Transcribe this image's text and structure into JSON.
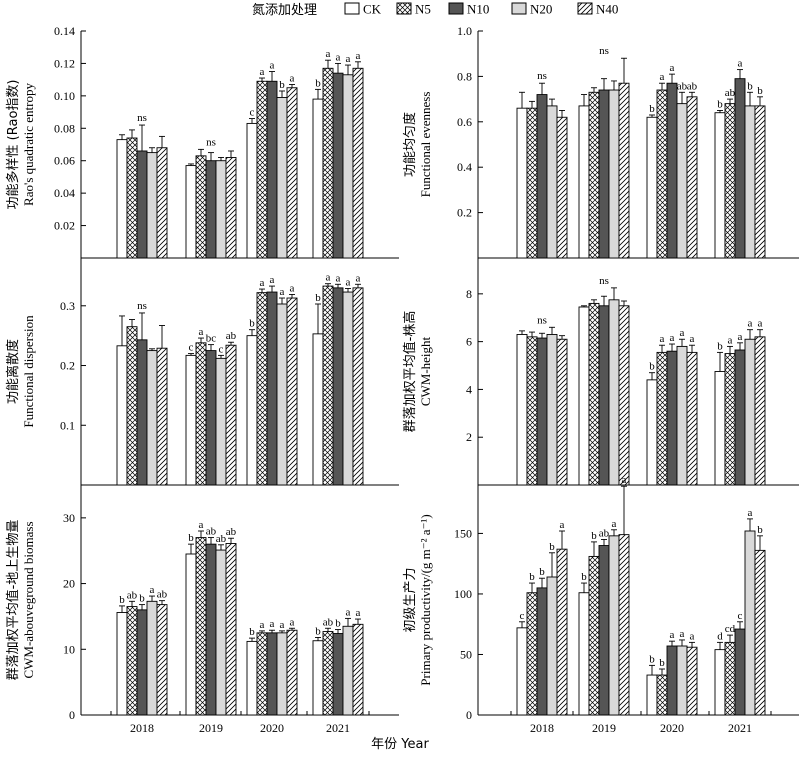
{
  "legend": {
    "title": "氮添加处理",
    "items": [
      {
        "name": "CK",
        "pattern": "white"
      },
      {
        "name": "N5",
        "pattern": "cross"
      },
      {
        "name": "N10",
        "pattern": "dark"
      },
      {
        "name": "N20",
        "pattern": "light"
      },
      {
        "name": "N40",
        "pattern": "hatch"
      }
    ]
  },
  "xlabel": "年份 Year",
  "colors": {
    "dark": "#555555",
    "light": "#d9d9d9",
    "stroke": "#000000",
    "white": "#ffffff"
  },
  "chart_data": [
    {
      "id": "rao",
      "type": "bar",
      "ylabel": [
        "功能多样性 (Rao指数)",
        "Rao's quadratic entropy"
      ],
      "categories": [
        "2018",
        "2019",
        "2020",
        "2021"
      ],
      "ylim": [
        0,
        0.14
      ],
      "yticks": [
        "0.02",
        "0.04",
        "0.06",
        "0.08",
        "0.10",
        "0.12",
        "0.14"
      ],
      "yticks_values": [
        0.02,
        0.04,
        0.06,
        0.08,
        0.1,
        0.12,
        0.14
      ],
      "series": [
        {
          "name": "CK",
          "values": [
            0.073,
            0.057,
            0.083,
            0.098
          ],
          "errors": [
            0.003,
            0.001,
            0.003,
            0.006
          ]
        },
        {
          "name": "N5",
          "values": [
            0.074,
            0.063,
            0.109,
            0.117
          ],
          "errors": [
            0.005,
            0.004,
            0.002,
            0.005
          ]
        },
        {
          "name": "N10",
          "values": [
            0.066,
            0.06,
            0.109,
            0.114
          ],
          "errors": [
            0.016,
            0.005,
            0.006,
            0.006
          ]
        },
        {
          "name": "N20",
          "values": [
            0.065,
            0.06,
            0.099,
            0.113
          ],
          "errors": [
            0.003,
            0.002,
            0.004,
            0.006
          ]
        },
        {
          "name": "N40",
          "values": [
            0.068,
            0.062,
            0.105,
            0.117
          ],
          "errors": [
            0.007,
            0.004,
            0.002,
            0.004
          ]
        }
      ],
      "annotations": [
        [
          {
            "text": "ns",
            "group": true
          }
        ],
        [
          {
            "text": "ns",
            "group": true
          }
        ],
        [
          {
            "text": "c"
          },
          {
            "text": "a"
          },
          {
            "text": "a"
          },
          {
            "text": "b"
          },
          {
            "text": "a"
          }
        ],
        [
          {
            "text": "b"
          },
          {
            "text": "a"
          },
          {
            "text": "a"
          },
          {
            "text": "a"
          },
          {
            "text": "a"
          }
        ]
      ]
    },
    {
      "id": "fe",
      "type": "bar",
      "ylabel": [
        "功能均匀度",
        "Functional evenness"
      ],
      "categories": [
        "2018",
        "2019",
        "2020",
        "2021"
      ],
      "ylim": [
        0,
        1.0
      ],
      "yticks": [
        "0.2",
        "0.4",
        "0.6",
        "0.8",
        "1.0"
      ],
      "yticks_values": [
        0.2,
        0.4,
        0.6,
        0.8,
        1.0
      ],
      "series": [
        {
          "name": "CK",
          "values": [
            0.66,
            0.67,
            0.62,
            0.64
          ],
          "errors": [
            0.07,
            0.05,
            0.01,
            0.01
          ]
        },
        {
          "name": "N5",
          "values": [
            0.66,
            0.73,
            0.74,
            0.68
          ],
          "errors": [
            0.03,
            0.02,
            0.03,
            0.02
          ]
        },
        {
          "name": "N10",
          "values": [
            0.72,
            0.74,
            0.77,
            0.79
          ],
          "errors": [
            0.05,
            0.05,
            0.04,
            0.04
          ]
        },
        {
          "name": "N20",
          "values": [
            0.67,
            0.74,
            0.68,
            0.67
          ],
          "errors": [
            0.03,
            0.04,
            0.05,
            0.06
          ]
        },
        {
          "name": "N40",
          "values": [
            0.62,
            0.77,
            0.71,
            0.67
          ],
          "errors": [
            0.03,
            0.11,
            0.02,
            0.04
          ]
        }
      ],
      "annotations": [
        [
          {
            "text": "ns",
            "group": true
          }
        ],
        [
          {
            "text": "ns",
            "group": true
          }
        ],
        [
          {
            "text": "b"
          },
          {
            "text": "a"
          },
          {
            "text": "a"
          },
          {
            "text": "ab"
          },
          {
            "text": "ab"
          }
        ],
        [
          {
            "text": "b"
          },
          {
            "text": "ab"
          },
          {
            "text": "a"
          },
          {
            "text": "b"
          },
          {
            "text": "b"
          }
        ]
      ]
    },
    {
      "id": "fd",
      "type": "bar",
      "ylabel": [
        "功能离散度",
        "Functional dispersion"
      ],
      "categories": [
        "2018",
        "2019",
        "2020",
        "2021"
      ],
      "ylim": [
        0,
        0.38
      ],
      "yticks": [
        "0.1",
        "0.2",
        "0.3"
      ],
      "yticks_values": [
        0.1,
        0.2,
        0.3
      ],
      "series": [
        {
          "name": "CK",
          "values": [
            0.233,
            0.217,
            0.25,
            0.253
          ],
          "errors": [
            0.05,
            0.003,
            0.01,
            0.05
          ]
        },
        {
          "name": "N5",
          "values": [
            0.265,
            0.238,
            0.322,
            0.333
          ],
          "errors": [
            0.012,
            0.008,
            0.006,
            0.004
          ]
        },
        {
          "name": "N10",
          "values": [
            0.243,
            0.225,
            0.323,
            0.33
          ],
          "errors": [
            0.045,
            0.01,
            0.01,
            0.006
          ]
        },
        {
          "name": "N20",
          "values": [
            0.225,
            0.212,
            0.303,
            0.323
          ],
          "errors": [
            0.003,
            0.005,
            0.01,
            0.006
          ]
        },
        {
          "name": "N40",
          "values": [
            0.229,
            0.234,
            0.313,
            0.33
          ],
          "errors": [
            0.038,
            0.005,
            0.006,
            0.006
          ]
        }
      ],
      "annotations": [
        [
          {
            "text": "ns",
            "group": true
          }
        ],
        [
          {
            "text": "c"
          },
          {
            "text": "a"
          },
          {
            "text": "bc"
          },
          {
            "text": "c"
          },
          {
            "text": "ab"
          }
        ],
        [
          {
            "text": "b"
          },
          {
            "text": "a"
          },
          {
            "text": "a"
          },
          {
            "text": "a"
          },
          {
            "text": "a"
          }
        ],
        [
          {
            "text": "b"
          },
          {
            "text": "a"
          },
          {
            "text": "a"
          },
          {
            "text": "a"
          },
          {
            "text": "a"
          }
        ]
      ]
    },
    {
      "id": "height",
      "type": "bar",
      "ylabel": [
        "群落加权平均值-株高",
        "CWM-height"
      ],
      "categories": [
        "2018",
        "2019",
        "2020",
        "2021"
      ],
      "ylim": [
        0,
        9.5
      ],
      "yticks": [
        "2",
        "4",
        "6",
        "8"
      ],
      "yticks_values": [
        2,
        4,
        6,
        8
      ],
      "series": [
        {
          "name": "CK",
          "values": [
            6.3,
            7.45,
            4.4,
            4.75
          ],
          "errors": [
            0.15,
            0.05,
            0.3,
            0.8
          ]
        },
        {
          "name": "N5",
          "values": [
            6.2,
            7.6,
            5.55,
            5.5
          ],
          "errors": [
            0.2,
            0.15,
            0.3,
            0.3
          ]
        },
        {
          "name": "N10",
          "values": [
            6.15,
            7.5,
            5.6,
            5.65
          ],
          "errors": [
            0.2,
            0.4,
            0.3,
            0.3
          ]
        },
        {
          "name": "N20",
          "values": [
            6.3,
            7.75,
            5.8,
            6.1
          ],
          "errors": [
            0.3,
            0.5,
            0.3,
            0.4
          ]
        },
        {
          "name": "N40",
          "values": [
            6.1,
            7.5,
            5.55,
            6.2
          ],
          "errors": [
            0.15,
            0.2,
            0.3,
            0.3
          ]
        }
      ],
      "annotations": [
        [
          {
            "text": "ns",
            "group": true
          }
        ],
        [
          {
            "text": "ns",
            "group": true
          }
        ],
        [
          {
            "text": "b"
          },
          {
            "text": "a"
          },
          {
            "text": "a"
          },
          {
            "text": "a"
          },
          {
            "text": "a"
          }
        ],
        [
          {
            "text": "b"
          },
          {
            "text": "a"
          },
          {
            "text": "a"
          },
          {
            "text": "a"
          },
          {
            "text": "a"
          }
        ]
      ]
    },
    {
      "id": "biomass",
      "type": "bar",
      "ylabel": [
        "群落加权平均值-地上生物量",
        "CWM-abouveground biomass"
      ],
      "categories": [
        "2018",
        "2019",
        "2020",
        "2021"
      ],
      "ylim": [
        0,
        35
      ],
      "yticks": [
        "0",
        "10",
        "20",
        "30"
      ],
      "yticks_values": [
        0,
        10,
        20,
        30
      ],
      "series": [
        {
          "name": "CK",
          "values": [
            15.6,
            24.5,
            11.2,
            11.3
          ],
          "errors": [
            1.0,
            1.5,
            0.5,
            0.5
          ]
        },
        {
          "name": "N5",
          "values": [
            16.5,
            27.0,
            12.5,
            12.7
          ],
          "errors": [
            0.8,
            1.0,
            0.3,
            0.5
          ]
        },
        {
          "name": "N10",
          "values": [
            16.0,
            26.0,
            12.5,
            12.4
          ],
          "errors": [
            0.8,
            1.0,
            0.4,
            0.6
          ]
        },
        {
          "name": "N20",
          "values": [
            17.3,
            25.1,
            12.5,
            13.5
          ],
          "errors": [
            0.8,
            0.8,
            0.3,
            1.2
          ]
        },
        {
          "name": "N40",
          "values": [
            16.8,
            26.1,
            12.9,
            13.8
          ],
          "errors": [
            0.6,
            0.8,
            0.3,
            0.8
          ]
        }
      ],
      "annotations": [
        [
          {
            "text": "b"
          },
          {
            "text": "ab"
          },
          {
            "text": "b"
          },
          {
            "text": "a"
          },
          {
            "text": "ab"
          }
        ],
        [
          {
            "text": "b"
          },
          {
            "text": "a"
          },
          {
            "text": "ab"
          },
          {
            "text": "ab"
          },
          {
            "text": "ab"
          }
        ],
        [
          {
            "text": "b"
          },
          {
            "text": "a"
          },
          {
            "text": "a"
          },
          {
            "text": "a"
          },
          {
            "text": "a"
          }
        ],
        [
          {
            "text": "b"
          },
          {
            "text": "ab"
          },
          {
            "text": "b"
          },
          {
            "text": "a"
          },
          {
            "text": "a"
          }
        ]
      ]
    },
    {
      "id": "prod",
      "type": "bar",
      "ylabel": [
        "初级生产力",
        "Primary productivity/(g m⁻² a⁻¹)"
      ],
      "categories": [
        "2018",
        "2019",
        "2020",
        "2021"
      ],
      "ylim": [
        0,
        190
      ],
      "yticks": [
        "0",
        "50",
        "100",
        "150"
      ],
      "yticks_values": [
        0,
        50,
        100,
        150
      ],
      "series": [
        {
          "name": "CK",
          "values": [
            72,
            101,
            33,
            54
          ],
          "errors": [
            5,
            8,
            8,
            6
          ]
        },
        {
          "name": "N5",
          "values": [
            101,
            131,
            33,
            60
          ],
          "errors": [
            8,
            12,
            5,
            6
          ]
        },
        {
          "name": "N10",
          "values": [
            105,
            140,
            57,
            71
          ],
          "errors": [
            8,
            5,
            4,
            6
          ]
        },
        {
          "name": "N20",
          "values": [
            114,
            148,
            57,
            152
          ],
          "errors": [
            20,
            5,
            5,
            10
          ]
        },
        {
          "name": "N40",
          "values": [
            137,
            149,
            56,
            136
          ],
          "errors": [
            15,
            40,
            4,
            12
          ]
        }
      ],
      "annotations": [
        [
          {
            "text": "c"
          },
          {
            "text": "b"
          },
          {
            "text": "b"
          },
          {
            "text": "b"
          },
          {
            "text": "a"
          }
        ],
        [
          {
            "text": "b"
          },
          {
            "text": "b"
          },
          {
            "text": "ab"
          },
          {
            "text": "a"
          },
          {
            "text": "a"
          }
        ],
        [
          {
            "text": "b"
          },
          {
            "text": "b"
          },
          {
            "text": "a"
          },
          {
            "text": "a"
          },
          {
            "text": "a"
          }
        ],
        [
          {
            "text": "d"
          },
          {
            "text": "cd"
          },
          {
            "text": "c"
          },
          {
            "text": "a"
          },
          {
            "text": "b"
          }
        ]
      ]
    }
  ]
}
